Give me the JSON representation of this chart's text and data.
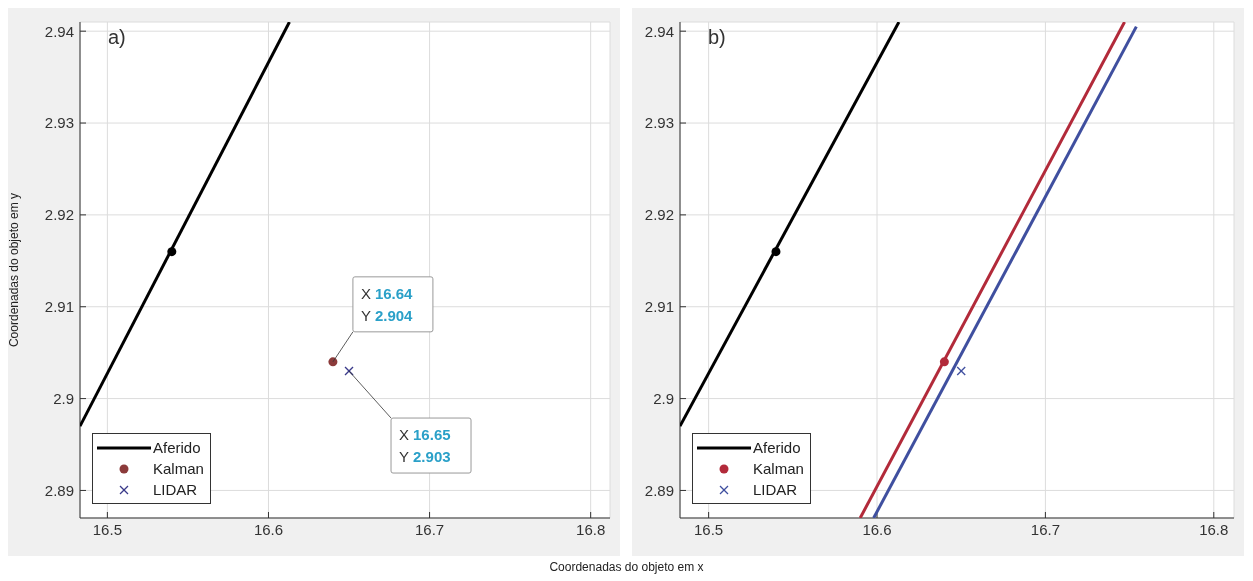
{
  "chart_data": [
    {
      "type": "scatter",
      "title": "a)",
      "xlabel": "Coordenadas do objeto em x",
      "ylabel": "Coordenadas do objeto em y",
      "xlim": [
        16.483,
        16.812
      ],
      "xticks": [
        16.5,
        16.6,
        16.7,
        16.8
      ],
      "ylim": [
        2.887,
        2.941
      ],
      "yticks": [
        2.89,
        2.9,
        2.91,
        2.92,
        2.93,
        2.94
      ],
      "grid": true,
      "legend": "bottom left",
      "series": [
        {
          "name": "Aferido",
          "type": "line",
          "color": "#000000",
          "x": [
            16.483,
            16.613
          ],
          "values": [
            2.897,
            2.941
          ]
        },
        {
          "name": "Kalman",
          "marker": "circle",
          "color": "#8b3a3a",
          "x": [
            16.64
          ],
          "values": [
            2.904
          ]
        },
        {
          "name": "LIDAR",
          "marker": "cross",
          "color": "#3a3a8a",
          "x": [
            16.65
          ],
          "values": [
            2.903
          ]
        },
        {
          "marker": "circle",
          "color": "#000000",
          "x": [
            16.54
          ],
          "values": [
            2.916
          ]
        }
      ],
      "annotations": [
        {
          "text": "X 16.64\nY 2.904",
          "x": 16.64,
          "y": 2.904
        },
        {
          "text": "X 16.65\nY 2.903",
          "x": 16.65,
          "y": 2.903
        }
      ]
    },
    {
      "type": "scatter",
      "title": "b)",
      "xlim": [
        16.483,
        16.812
      ],
      "xticks": [
        16.5,
        16.6,
        16.7,
        16.8
      ],
      "ylim": [
        2.887,
        2.941
      ],
      "yticks": [
        2.89,
        2.9,
        2.91,
        2.92,
        2.93,
        2.94
      ],
      "grid": true,
      "legend": "bottom left",
      "series": [
        {
          "name": "Aferido",
          "type": "line",
          "color": "#000000",
          "x": [
            16.483,
            16.613
          ],
          "values": [
            2.897,
            2.941
          ]
        },
        {
          "name": "Kalman",
          "marker": "circle",
          "color": "#b22a3a",
          "x": [
            16.64
          ],
          "values": [
            2.904
          ]
        },
        {
          "name": "LIDAR",
          "marker": "cross",
          "color": "#3f4f9f",
          "x": [
            16.65
          ],
          "values": [
            2.903
          ]
        },
        {
          "marker": "circle",
          "color": "#000000",
          "x": [
            16.54
          ],
          "values": [
            2.916
          ]
        },
        {
          "type": "line",
          "color": "#b22a3a",
          "x": [
            16.59,
            16.747
          ],
          "values": [
            2.887,
            2.941
          ]
        },
        {
          "type": "line",
          "color": "#3f4f9f",
          "x": [
            16.598,
            16.754
          ],
          "values": [
            2.887,
            2.9405
          ]
        }
      ]
    }
  ]
}
